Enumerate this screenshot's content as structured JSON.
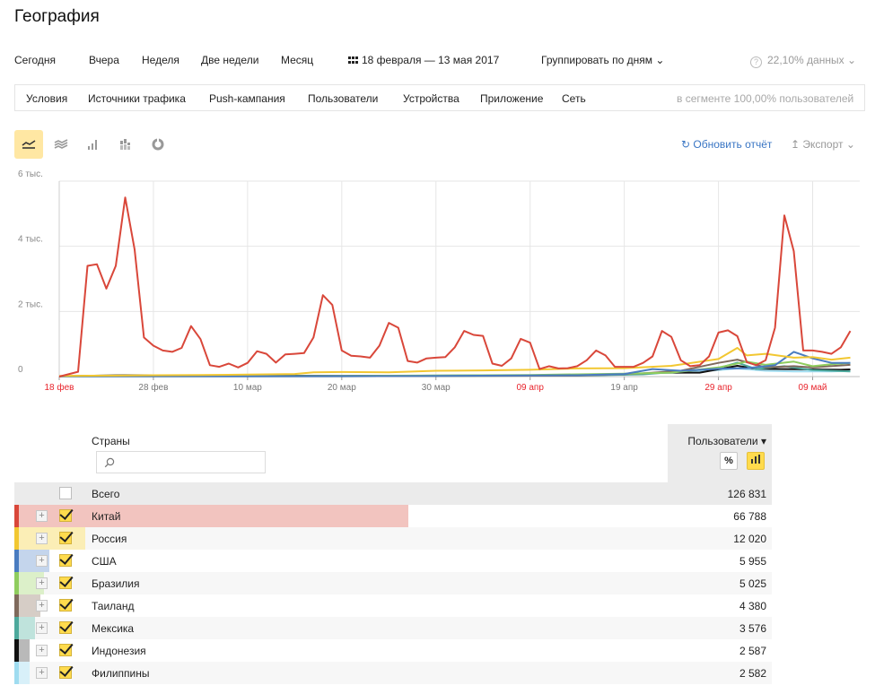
{
  "page": {
    "title": "География"
  },
  "period": {
    "items": [
      "Сегодня",
      "Вчера",
      "Неделя",
      "Две недели",
      "Месяц"
    ],
    "date_range": "18 февраля — 13 мая 2017",
    "group_by": "Группировать по дням",
    "sampling": "22,10% данных"
  },
  "segment": {
    "items": [
      "Условия",
      "Источники трафика",
      "Push-кампания",
      "Пользователи",
      "Устройства",
      "Приложение",
      "Сеть"
    ],
    "info": "в сегменте 100,00% пользователей"
  },
  "toolbar": {
    "view_icons": [
      "line-chart-icon",
      "area-chart-icon",
      "bar-chart-icon",
      "stacked-bar-chart-icon",
      "pie-chart-icon"
    ],
    "refresh": "Обновить отчёт",
    "export": "Экспорт"
  },
  "colors": {
    "china": "#d9473a",
    "russia": "#f2c731",
    "usa": "#4a7cc0",
    "brazil": "#8fcd5e",
    "thailand": "#7f6a5c",
    "mexico": "#4da99c",
    "indonesia": "#111111",
    "philippines": "#9fdcf0",
    "weekend": "#e8242c",
    "accent": "#ffdb4d"
  },
  "chart_data": {
    "type": "line",
    "x_tick_labels": [
      "18 фев",
      "28 фев",
      "10 мар",
      "20 мар",
      "30 мар",
      "09 апр",
      "19 апр",
      "29 апр",
      "09 май"
    ],
    "weekend_ticks": [
      0,
      5,
      7,
      8
    ],
    "y_tick_labels": [
      "6 тыс.",
      "4 тыс.",
      "2 тыс.",
      "0"
    ],
    "ylim": [
      0,
      6000
    ],
    "x_days": 85,
    "grid": true,
    "series": [
      {
        "name": "Китай",
        "color": "#d9473a",
        "points": [
          [
            0,
            0
          ],
          [
            2,
            150
          ],
          [
            3,
            3400
          ],
          [
            4,
            3450
          ],
          [
            5,
            2700
          ],
          [
            6,
            3400
          ],
          [
            7,
            5500
          ],
          [
            8,
            3900
          ],
          [
            9,
            1200
          ],
          [
            10,
            950
          ],
          [
            11,
            800
          ],
          [
            12,
            760
          ],
          [
            13,
            880
          ],
          [
            14,
            1550
          ],
          [
            15,
            1150
          ],
          [
            16,
            350
          ],
          [
            17,
            300
          ],
          [
            18,
            400
          ],
          [
            19,
            280
          ],
          [
            20,
            420
          ],
          [
            21,
            780
          ],
          [
            22,
            700
          ],
          [
            23,
            430
          ],
          [
            24,
            680
          ],
          [
            25,
            700
          ],
          [
            26,
            720
          ],
          [
            27,
            1200
          ],
          [
            28,
            2500
          ],
          [
            29,
            2200
          ],
          [
            30,
            800
          ],
          [
            31,
            640
          ],
          [
            32,
            620
          ],
          [
            33,
            580
          ],
          [
            34,
            950
          ],
          [
            35,
            1650
          ],
          [
            36,
            1500
          ],
          [
            37,
            480
          ],
          [
            38,
            430
          ],
          [
            39,
            560
          ],
          [
            40,
            580
          ],
          [
            41,
            600
          ],
          [
            42,
            900
          ],
          [
            43,
            1400
          ],
          [
            44,
            1280
          ],
          [
            45,
            1250
          ],
          [
            46,
            400
          ],
          [
            47,
            330
          ],
          [
            48,
            560
          ],
          [
            49,
            1160
          ],
          [
            50,
            1040
          ],
          [
            51,
            230
          ],
          [
            52,
            320
          ],
          [
            53,
            250
          ],
          [
            54,
            260
          ],
          [
            55,
            320
          ],
          [
            56,
            500
          ],
          [
            57,
            800
          ],
          [
            58,
            650
          ],
          [
            59,
            300
          ],
          [
            60,
            300
          ],
          [
            61,
            300
          ],
          [
            62,
            420
          ],
          [
            63,
            620
          ],
          [
            64,
            1400
          ],
          [
            65,
            1220
          ],
          [
            66,
            500
          ],
          [
            67,
            320
          ],
          [
            68,
            350
          ],
          [
            69,
            620
          ],
          [
            70,
            1350
          ],
          [
            71,
            1420
          ],
          [
            72,
            1240
          ],
          [
            73,
            450
          ],
          [
            74,
            350
          ],
          [
            75,
            500
          ],
          [
            76,
            1500
          ],
          [
            77,
            4950
          ],
          [
            78,
            3850
          ],
          [
            79,
            800
          ],
          [
            80,
            800
          ],
          [
            81,
            760
          ],
          [
            82,
            700
          ],
          [
            83,
            900
          ],
          [
            84,
            1400
          ]
        ]
      },
      {
        "name": "Россия",
        "color": "#f2c731",
        "points": [
          [
            0,
            20
          ],
          [
            5,
            30
          ],
          [
            10,
            40
          ],
          [
            15,
            50
          ],
          [
            20,
            60
          ],
          [
            25,
            80
          ],
          [
            27,
            130
          ],
          [
            30,
            140
          ],
          [
            35,
            130
          ],
          [
            40,
            180
          ],
          [
            45,
            190
          ],
          [
            50,
            210
          ],
          [
            55,
            250
          ],
          [
            60,
            260
          ],
          [
            65,
            330
          ],
          [
            70,
            540
          ],
          [
            72,
            880
          ],
          [
            73,
            650
          ],
          [
            75,
            700
          ],
          [
            78,
            580
          ],
          [
            80,
            600
          ],
          [
            82,
            520
          ],
          [
            84,
            580
          ]
        ]
      },
      {
        "name": "США",
        "color": "#4a7cc0",
        "points": [
          [
            0,
            10
          ],
          [
            20,
            10
          ],
          [
            40,
            20
          ],
          [
            55,
            40
          ],
          [
            60,
            80
          ],
          [
            63,
            230
          ],
          [
            66,
            180
          ],
          [
            70,
            240
          ],
          [
            73,
            260
          ],
          [
            76,
            350
          ],
          [
            78,
            760
          ],
          [
            80,
            560
          ],
          [
            82,
            420
          ],
          [
            84,
            420
          ]
        ]
      },
      {
        "name": "Бразилия",
        "color": "#8fcd5e",
        "points": [
          [
            0,
            10
          ],
          [
            30,
            20
          ],
          [
            50,
            50
          ],
          [
            60,
            90
          ],
          [
            65,
            120
          ],
          [
            70,
            280
          ],
          [
            73,
            460
          ],
          [
            75,
            360
          ],
          [
            78,
            460
          ],
          [
            80,
            320
          ],
          [
            82,
            380
          ],
          [
            84,
            420
          ]
        ]
      },
      {
        "name": "Таиланд",
        "color": "#7f6a5c",
        "points": [
          [
            0,
            10
          ],
          [
            30,
            10
          ],
          [
            55,
            30
          ],
          [
            62,
            100
          ],
          [
            66,
            180
          ],
          [
            70,
            420
          ],
          [
            72,
            520
          ],
          [
            75,
            280
          ],
          [
            78,
            320
          ],
          [
            80,
            280
          ],
          [
            84,
            360
          ]
        ]
      },
      {
        "name": "Мексика",
        "color": "#4da99c",
        "points": [
          [
            0,
            10
          ],
          [
            30,
            10
          ],
          [
            55,
            30
          ],
          [
            62,
            70
          ],
          [
            66,
            160
          ],
          [
            70,
            260
          ],
          [
            72,
            430
          ],
          [
            74,
            230
          ],
          [
            77,
            320
          ],
          [
            80,
            200
          ],
          [
            84,
            160
          ]
        ]
      },
      {
        "name": "Индонезия",
        "color": "#111111",
        "points": [
          [
            0,
            10
          ],
          [
            7,
            40
          ],
          [
            30,
            20
          ],
          [
            55,
            40
          ],
          [
            60,
            60
          ],
          [
            64,
            120
          ],
          [
            68,
            120
          ],
          [
            72,
            330
          ],
          [
            74,
            240
          ],
          [
            77,
            230
          ],
          [
            80,
            220
          ],
          [
            83,
            210
          ],
          [
            84,
            220
          ]
        ]
      },
      {
        "name": "Филиппины",
        "color": "#9fdcf0",
        "points": [
          [
            0,
            10
          ],
          [
            30,
            20
          ],
          [
            55,
            40
          ],
          [
            62,
            100
          ],
          [
            66,
            120
          ],
          [
            70,
            200
          ],
          [
            72,
            250
          ],
          [
            75,
            180
          ],
          [
            78,
            160
          ],
          [
            82,
            160
          ],
          [
            84,
            180
          ]
        ]
      }
    ]
  },
  "table": {
    "column_name": "Страны",
    "search_placeholder": "",
    "column_metric": "Пользователи ▾",
    "mode_percent": "%",
    "total": {
      "name": "Всего",
      "value": "126 831"
    },
    "rows": [
      {
        "name": "Китай",
        "value": "66 788",
        "color": "#d9473a",
        "share": 0.527,
        "tint": "#f2c4bf"
      },
      {
        "name": "Россия",
        "value": "12 020",
        "color": "#f2c731",
        "share": 0.095,
        "tint": "#fbeeb6"
      },
      {
        "name": "США",
        "value": "5 955",
        "color": "#4a7cc0",
        "share": 0.047,
        "tint": "#c4d5ec"
      },
      {
        "name": "Бразилия",
        "value": "5 025",
        "color": "#8fcd5e",
        "share": 0.04,
        "tint": "#dcf0c9"
      },
      {
        "name": "Таиланд",
        "value": "4 380",
        "color": "#7f6a5c",
        "share": 0.035,
        "tint": "#d6cdc6"
      },
      {
        "name": "Мексика",
        "value": "3 576",
        "color": "#4da99c",
        "share": 0.028,
        "tint": "#bfe3dc"
      },
      {
        "name": "Индонезия",
        "value": "2 587",
        "color": "#111111",
        "share": 0.02,
        "tint": "#b9b9b9"
      },
      {
        "name": "Филиппины",
        "value": "2 582",
        "color": "#9fdcf0",
        "share": 0.02,
        "tint": "#d8f0f9"
      }
    ]
  }
}
